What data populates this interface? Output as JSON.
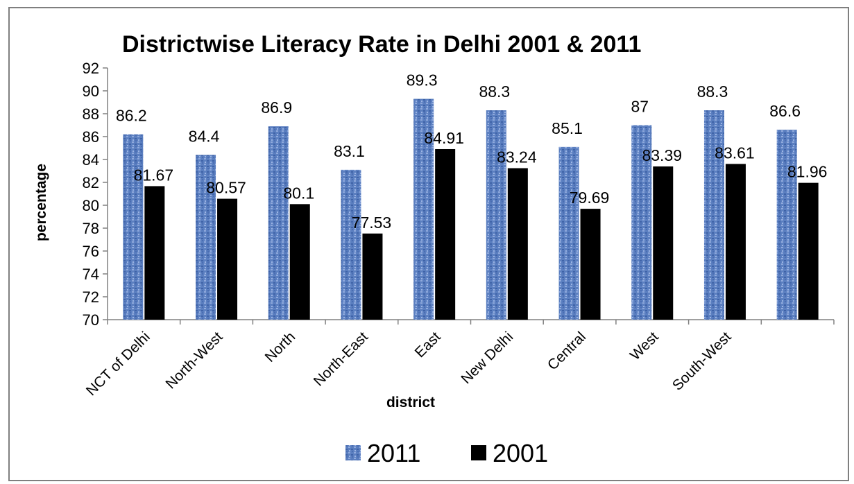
{
  "chart_data": {
    "type": "bar",
    "title": "Districtwise Literacy Rate in Delhi 2001 & 2011",
    "xlabel": "district",
    "ylabel": "percentage",
    "ylim": [
      70,
      92
    ],
    "yticks": [
      70,
      72,
      74,
      76,
      78,
      80,
      82,
      84,
      86,
      88,
      90,
      92
    ],
    "categories": [
      "NCT of Delhi",
      "North-West",
      "North",
      "North-East",
      "East",
      "New Delhi",
      "Central",
      "West",
      "South-West",
      ""
    ],
    "series": [
      {
        "name": "2011",
        "color": "#5b7fc0",
        "values": [
          86.2,
          84.4,
          86.9,
          83.1,
          89.3,
          88.3,
          85.1,
          87,
          88.3,
          86.6
        ],
        "labels": [
          "86.2",
          "84.4",
          "86.9",
          "83.1",
          "89.3",
          "88.3",
          "85.1",
          "87",
          "88.3",
          "86.6"
        ]
      },
      {
        "name": "2001",
        "color": "#000000",
        "values": [
          81.67,
          80.57,
          80.1,
          77.53,
          84.91,
          83.24,
          79.69,
          83.39,
          83.61,
          81.96
        ],
        "labels": [
          "81.67",
          "80.57",
          "80.1",
          "77.53",
          "84.91",
          "83.24",
          "79.69",
          "83.39",
          "83.61",
          "81.96"
        ]
      }
    ],
    "grid": false,
    "legend_position": "bottom"
  }
}
